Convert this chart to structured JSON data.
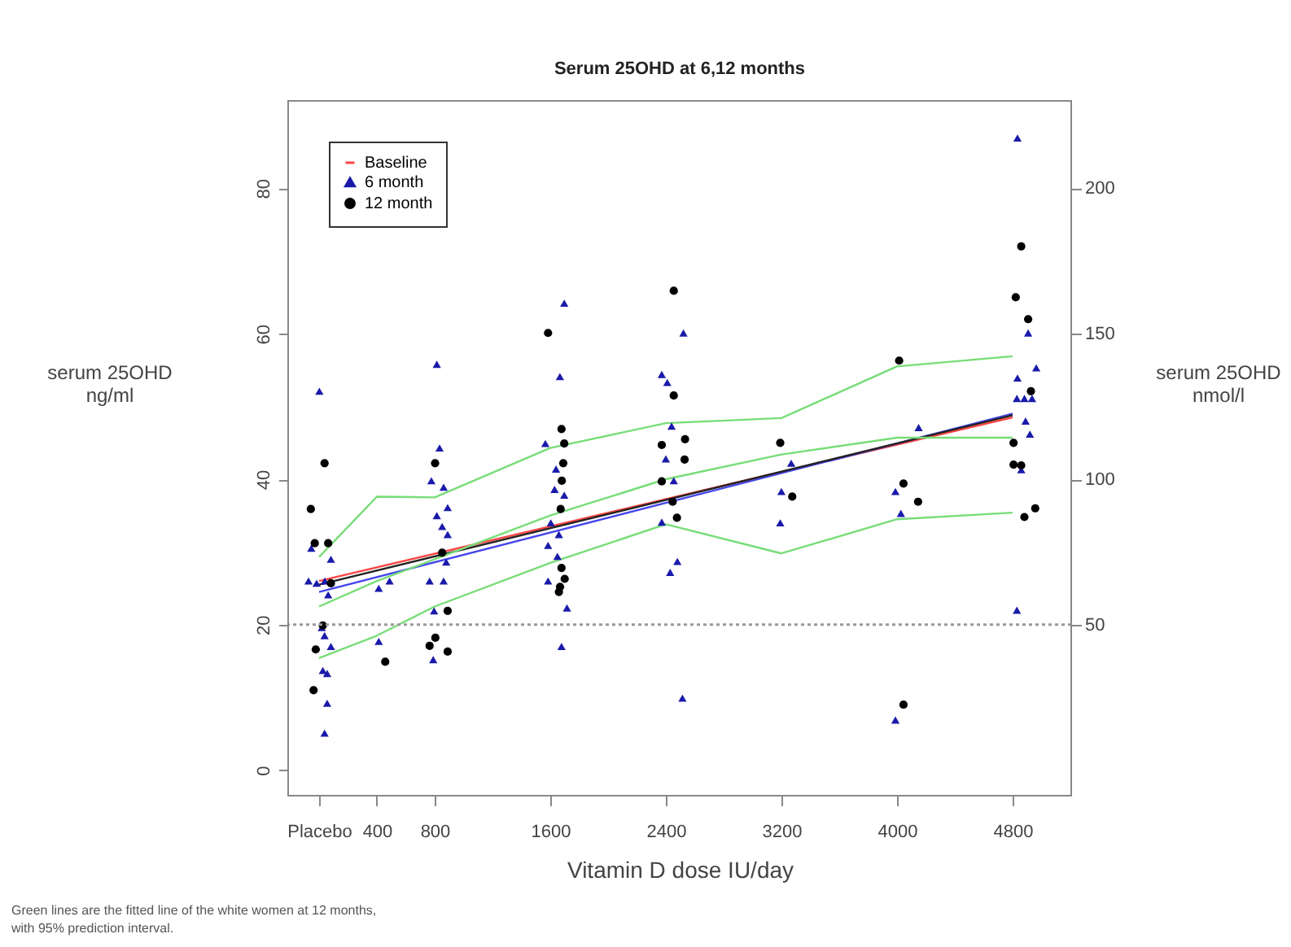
{
  "chart_data": {
    "type": "scatter",
    "title": "Serum 25OHD at 6,12 months",
    "xlabel": "Vitamin D dose IU/day",
    "ylabel": "serum 25OHD ng/ml",
    "y2label": "serum 25OHD nmol/l",
    "annotations": [
      "Green lines are the fitted line of the white women at 12 months, with 95% prediction interval."
    ],
    "xlim": [
      -214,
      5206
    ],
    "xticks": [
      {
        "value": 0,
        "label": "Placebo"
      },
      400,
      800,
      1600,
      2400,
      3200,
      4000,
      4800
    ],
    "ylim": [
      -3.5,
      92
    ],
    "yticks": [
      0,
      20,
      40,
      60,
      80
    ],
    "y2lim": [
      -8.75,
      230
    ],
    "y2ticks": [
      50,
      100,
      150,
      200
    ],
    "grid": false,
    "legend": "top left",
    "ref_lines": [
      {
        "axis": "y2",
        "value": 50,
        "color": "#999999",
        "line_style": "dotted"
      }
    ],
    "series": [
      {
        "name": "Baseline",
        "type": "line",
        "color": "#ff4444",
        "marker": "none",
        "x": [
          0,
          4800
        ],
        "values": [
          26,
          48.5
        ]
      },
      {
        "type": "line",
        "color": "#4444ee",
        "marker": "none",
        "x": [
          0,
          4800
        ],
        "values": [
          24.5,
          49
        ]
      },
      {
        "type": "line",
        "color": "#222222",
        "marker": "none",
        "x": [
          0,
          4800
        ],
        "values": [
          25.5,
          48.8
        ]
      },
      {
        "type": "line",
        "color": "#77dd77",
        "marker": "none",
        "x": [
          0,
          400,
          800,
          1600,
          2400,
          3200,
          4000,
          4800
        ],
        "values": [
          29.3,
          37.6,
          37.5,
          44.3,
          47.7,
          48.4,
          55.5,
          56.9
        ]
      },
      {
        "type": "line",
        "color": "#77dd77",
        "marker": "none",
        "x": [
          0,
          400,
          800,
          1600,
          2400,
          3200,
          4000,
          4800
        ],
        "values": [
          22.5,
          26,
          29,
          35,
          40,
          43.4,
          45.7,
          45.7
        ]
      },
      {
        "type": "line",
        "color": "#77dd77",
        "marker": "none",
        "x": [
          0,
          400,
          800,
          1600,
          2400,
          3200,
          4000,
          4800
        ],
        "values": [
          15.4,
          18.5,
          22.5,
          28.5,
          33.8,
          29.8,
          34.5,
          35.4
        ]
      },
      {
        "name": "6 month",
        "type": "scatter",
        "color": "#1a1aaa",
        "marker": "triangle",
        "x": [
          2,
          -54,
          -73,
          -17,
          40,
          82,
          63,
          38,
          82,
          26,
          56,
          38,
          56,
          19,
          413,
          488,
          413,
          815,
          834,
          777,
          862,
          890,
          815,
          852,
          890,
          880,
          765,
          862,
          796,
          790,
          1697,
          1667,
          1566,
          1640,
          1630,
          1697,
          1604,
          1660,
          1585,
          1650,
          1585,
          1716,
          1678,
          2522,
          2372,
          2410,
          2440,
          2400,
          2455,
          2372,
          2480,
          2430,
          2515,
          3192,
          3200,
          3268,
          3989,
          4027,
          4150,
          3989,
          4834,
          4908,
          4964,
          4834,
          4882,
          4830,
          4935,
          4890,
          4920,
          4860,
          4830
        ],
        "values": [
          52.1,
          30.5,
          26.0,
          25.7,
          26.0,
          29.0,
          24.1,
          18.5,
          17.0,
          13.7,
          9.2,
          5.1,
          13.3,
          19.6,
          25.0,
          26.0,
          17.7,
          55.8,
          44.3,
          39.8,
          38.9,
          36.1,
          35.0,
          33.5,
          32.4,
          28.6,
          26.0,
          26.0,
          21.9,
          15.2,
          64.2,
          54.1,
          44.9,
          41.4,
          38.6,
          37.8,
          34.0,
          32.4,
          30.9,
          29.4,
          26.0,
          22.3,
          17.0,
          60.1,
          54.4,
          53.3,
          47.3,
          42.8,
          39.8,
          34.1,
          28.7,
          27.2,
          9.9,
          34.0,
          38.3,
          42.2,
          38.3,
          35.3,
          47.1,
          6.9,
          86.9,
          60.1,
          55.3,
          53.9,
          51.1,
          51.1,
          51.1,
          48.0,
          46.2,
          41.3,
          22.0
        ]
      },
      {
        "name": "12 month",
        "type": "scatter",
        "color": "#000000",
        "marker": "circle",
        "x": [
          38,
          -57,
          -30,
          63,
          82,
          26,
          -23,
          -38,
          458,
          803,
          852,
          890,
          805,
          765,
          890,
          1585,
          1678,
          1697,
          1690,
          1680,
          1672,
          1678,
          1668,
          1660,
          1700,
          2455,
          2372,
          2533,
          2530,
          2372,
          2447,
          2477,
          2455,
          3192,
          3275,
          4015,
          4045,
          4146,
          4045,
          4860,
          4822,
          4908,
          4927,
          4807,
          4807,
          4860,
          4882,
          4957
        ],
        "values": [
          42.2,
          35.9,
          31.2,
          31.2,
          25.7,
          19.9,
          16.6,
          11.0,
          14.9,
          42.2,
          29.9,
          21.9,
          18.2,
          17.1,
          16.3,
          60.1,
          46.9,
          44.9,
          42.2,
          39.8,
          35.9,
          27.8,
          25.2,
          24.5,
          26.3,
          65.9,
          44.7,
          45.5,
          42.7,
          39.7,
          36.9,
          34.7,
          51.5,
          45.0,
          37.6,
          56.3,
          39.4,
          36.9,
          9.0,
          72.0,
          65.0,
          62.0,
          52.1,
          45.0,
          42.0,
          41.9,
          34.8,
          36.0
        ]
      }
    ]
  }
}
